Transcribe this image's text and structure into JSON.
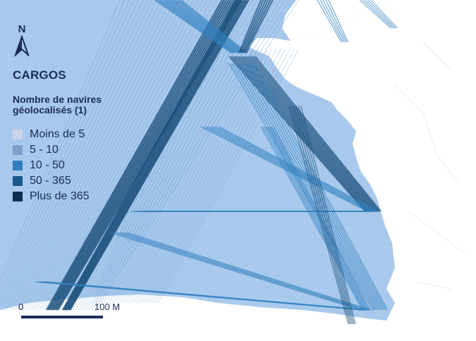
{
  "north_arrow": {
    "label": "N",
    "icon": "north-arrow-icon"
  },
  "title": "CARGOS",
  "subtitle": "Nombre de navires géolocalisés (1)",
  "legend": [
    {
      "label": "Moins de 5",
      "color": "#c8d4e8"
    },
    {
      "label": "5 - 10",
      "color": "#7e9fcb"
    },
    {
      "label": "10 - 50",
      "color": "#2f7fbf"
    },
    {
      "label": "50 - 365",
      "color": "#1a5a8a"
    },
    {
      "label": "Plus de 365",
      "color": "#0f2f4f"
    }
  ],
  "scale_bar": {
    "start_label": "0",
    "end_label": "100 M"
  },
  "colors": {
    "sea": "#a9c9ec",
    "land": "#ffffff",
    "route_light": "#5f95c9",
    "route_mid": "#2f7fbf",
    "route_dark": "#1a4f7a",
    "text": "#1a2b5a"
  }
}
